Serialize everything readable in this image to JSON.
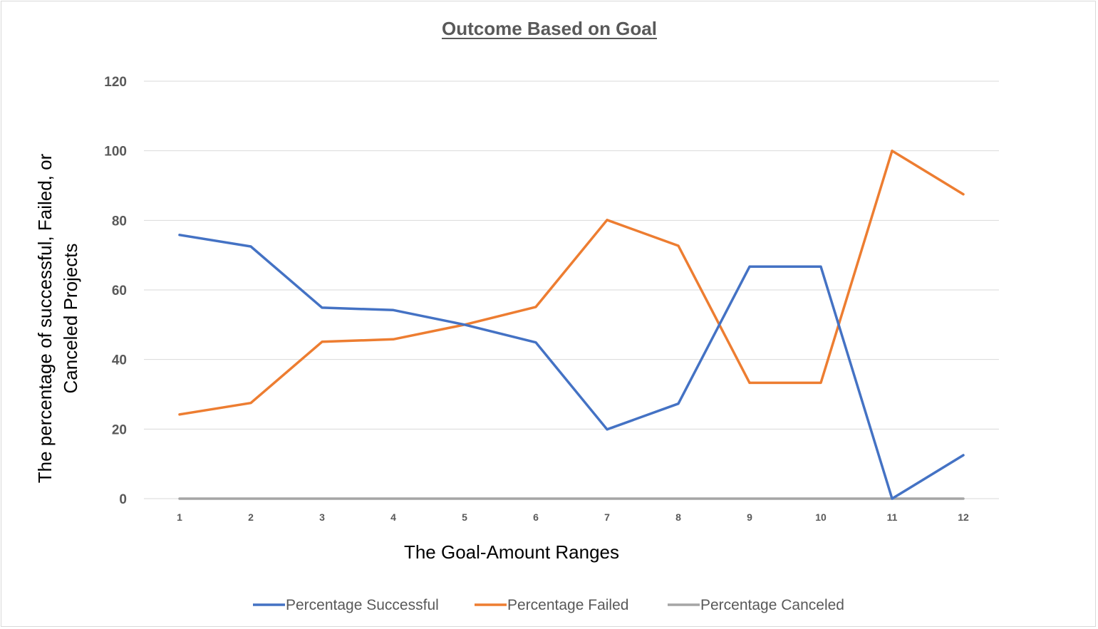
{
  "chart_data": {
    "type": "line",
    "title": "Outcome Based on Goal",
    "xlabel": "The Goal-Amount Ranges",
    "ylabel_lines": [
      "The percentage of successful, Failed, or",
      "Canceled Projects"
    ],
    "x": [
      "1",
      "2",
      "3",
      "4",
      "5",
      "6",
      "7",
      "8",
      "9",
      "10",
      "11",
      "12"
    ],
    "ylim": [
      0,
      120
    ],
    "yticks": [
      "0",
      "20",
      "40",
      "60",
      "80",
      "100",
      "120"
    ],
    "grid": true,
    "legend_position": "bottom",
    "series": [
      {
        "name": "Percentage Successful",
        "color": "#4472c4",
        "values": [
          75.8,
          72.5,
          54.9,
          54.2,
          50.0,
          44.9,
          19.9,
          27.3,
          66.7,
          66.7,
          0,
          12.5
        ]
      },
      {
        "name": "Percentage Failed",
        "color": "#ed7d31",
        "values": [
          24.2,
          27.5,
          45.1,
          45.8,
          50.0,
          55.1,
          80.1,
          72.7,
          33.3,
          33.3,
          100,
          87.5
        ]
      },
      {
        "name": "Percentage Canceled",
        "color": "#a5a5a5",
        "values": [
          0,
          0,
          0,
          0,
          0,
          0,
          0,
          0,
          0,
          0,
          0,
          0
        ]
      }
    ]
  }
}
